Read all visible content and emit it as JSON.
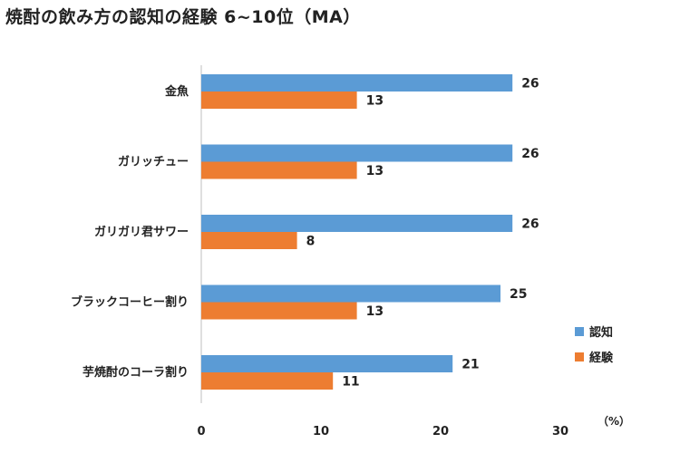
{
  "chart_data": {
    "type": "bar",
    "orientation": "horizontal",
    "title": "焼酎の飲み方の認知の経験 6~10位（MA）",
    "categories": [
      "金魚",
      "ガリッチュー",
      "ガリガリ君サワー",
      "ブラックコーヒー割り",
      "芋焼酎のコーラ割り"
    ],
    "series": [
      {
        "name": "認知",
        "color": "#5b9bd5",
        "values": [
          26,
          26,
          26,
          25,
          21
        ]
      },
      {
        "name": "経験",
        "color": "#ed7d31",
        "values": [
          13,
          13,
          8,
          13,
          11
        ]
      }
    ],
    "xlim": [
      0,
      30
    ],
    "xticks": [
      "0",
      "10",
      "20",
      "30"
    ],
    "unit": "（%）",
    "legend_position": "right",
    "grid": false
  }
}
